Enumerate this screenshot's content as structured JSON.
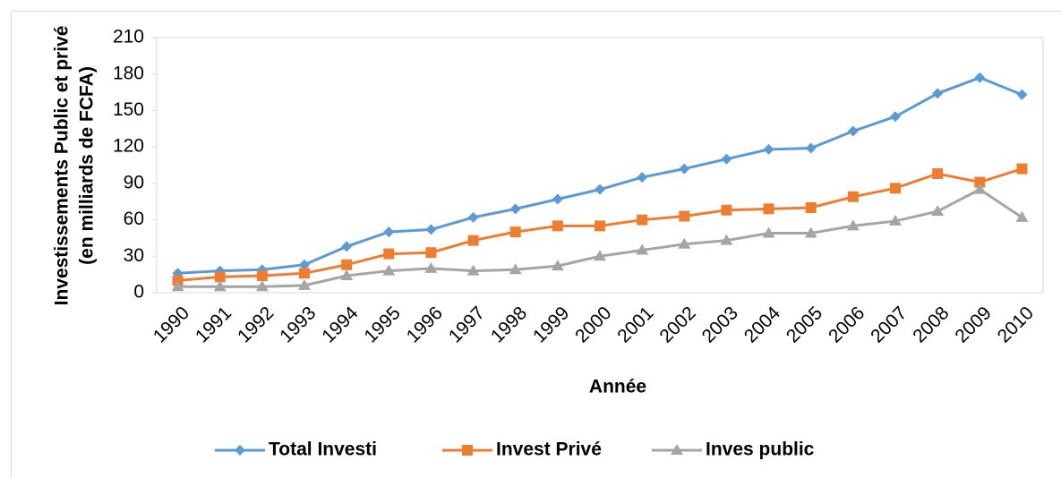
{
  "chart_data": {
    "type": "line",
    "x_label": "Année",
    "y_label": [
      "Investissements Public et privé",
      "(en milliards de FCFA)"
    ],
    "categories": [
      "1990",
      "1991",
      "1992",
      "1993",
      "1994",
      "1995",
      "1996",
      "1997",
      "1998",
      "1999",
      "2000",
      "2001",
      "2002",
      "2003",
      "2004",
      "2005",
      "2006",
      "2007",
      "2008",
      "2009",
      "2010"
    ],
    "series": [
      {
        "name": "Total Investi",
        "color": "#5b9bd5",
        "marker": "diamond",
        "values": [
          16,
          18,
          19,
          23,
          38,
          50,
          52,
          62,
          69,
          77,
          85,
          95,
          102,
          110,
          118,
          119,
          133,
          145,
          164,
          177,
          163
        ]
      },
      {
        "name": "Invest Privé",
        "color": "#ed7d31",
        "marker": "square",
        "values": [
          10,
          13,
          14,
          16,
          23,
          32,
          33,
          43,
          50,
          55,
          55,
          60,
          63,
          68,
          69,
          70,
          79,
          86,
          98,
          91,
          102
        ]
      },
      {
        "name": "Inves public",
        "color": "#a5a5a5",
        "marker": "triangle",
        "values": [
          5,
          5,
          5,
          6,
          14,
          18,
          20,
          18,
          19,
          22,
          30,
          35,
          40,
          43,
          49,
          49,
          55,
          59,
          67,
          85,
          62
        ]
      }
    ],
    "ylim": [
      0,
      210
    ],
    "yticks": [
      0,
      30,
      60,
      90,
      120,
      150,
      180,
      210
    ],
    "grid": false,
    "legend": "bottom"
  }
}
